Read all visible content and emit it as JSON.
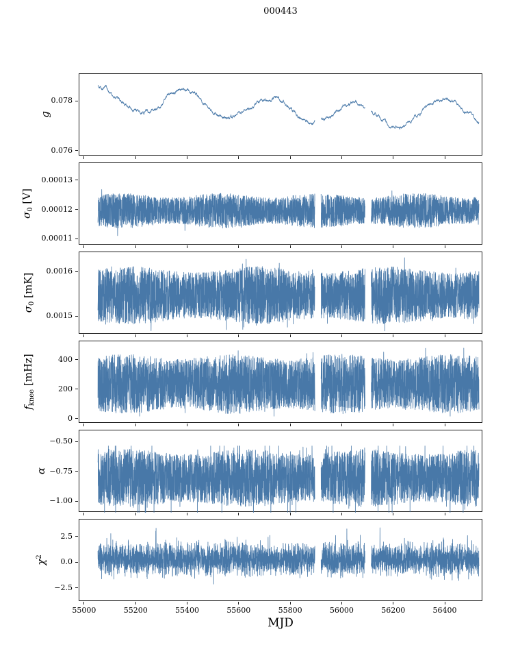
{
  "figure": {
    "title": "000443",
    "xlabel": "MJD",
    "line_color": "#4878a8",
    "background": "#ffffff"
  },
  "chart_data": {
    "type": "line",
    "title": "000443",
    "xlabel": "MJD",
    "legend": "none",
    "grid": false,
    "shared_x": true,
    "xlim": [
      54979,
      56546
    ],
    "xticks": [
      55000,
      55200,
      55400,
      55600,
      55800,
      56000,
      56200,
      56400
    ],
    "xtick_labels": [
      "55000",
      "55200",
      "55400",
      "55600",
      "55800",
      "56000",
      "56200",
      "56400"
    ],
    "x_data_range": [
      55051,
      56530
    ],
    "gaps": [
      [
        55893,
        55917
      ],
      [
        56088,
        56112
      ]
    ],
    "n_points": 4200,
    "line_color": "#4878a8",
    "subplots": [
      {
        "id": "g",
        "ylabel_text": "g",
        "ylabel_parts": [
          {
            "text": "g",
            "style": "italic"
          }
        ],
        "ylim": [
          0.0758,
          0.0791
        ],
        "yticks": [
          0.076,
          0.078
        ],
        "ytick_labels": [
          "0.076",
          "0.078"
        ],
        "summary": "slowly varying gain curve, oscillates between ~0.0765 and ~0.0790 with ~330-day quasi-period, high at start, deep minimum near MJD 56250",
        "series": {
          "kind": "smooth",
          "base": 0.0779,
          "walk_step": 5e-05,
          "walk_revert": 0.02,
          "clip": [
            0.0764,
            0.079
          ],
          "components": [
            {
              "amp": 0.00048,
              "period": 335,
              "phase": 1.6
            },
            {
              "amp": 0.00038,
              "period": 2900,
              "phase": 2.4
            }
          ]
        }
      },
      {
        "id": "sigma0_V",
        "ylabel_text": "σ0 [V]",
        "ylabel_parts": [
          {
            "text": "σ",
            "style": "italic"
          },
          {
            "text": "0",
            "style": "sub"
          },
          {
            "text": " [V]",
            "style": "normal"
          }
        ],
        "ylim": [
          0.000108,
          0.000136
        ],
        "yticks": [
          0.00013,
          0.00012,
          0.00011
        ],
        "ytick_labels": [
          "0.00013",
          "0.00012",
          "0.00011"
        ],
        "summary": "dense noise band centered near 0.00012 V spanning roughly 0.000114-0.000125 V with occasional low strands to ~0.000110 V",
        "series": {
          "kind": "uniform",
          "mean": 0.0001198,
          "spread": 5.2e-06,
          "mod_amp": 0.15,
          "mod_period": 380,
          "spike_rate": 0.004,
          "spike_scale": 2.0,
          "clip": [
            0.000109,
            0.000127
          ]
        }
      },
      {
        "id": "sigma0_mK",
        "ylabel_text": "σ0 [mK]",
        "ylabel_parts": [
          {
            "text": "σ",
            "style": "italic"
          },
          {
            "text": "0",
            "style": "sub"
          },
          {
            "text": " [mK]",
            "style": "normal"
          }
        ],
        "ylim": [
          0.00146,
          0.001645
        ],
        "yticks": [
          0.0016,
          0.0015
        ],
        "ytick_labels": [
          "0.0016",
          "0.0015"
        ],
        "summary": "dense noise band spanning roughly 0.00148-0.00162 mK centered near 0.00155",
        "series": {
          "kind": "uniform",
          "mean": 0.001548,
          "spread": 5.8e-05,
          "mod_amp": 0.12,
          "mod_period": 500,
          "spike_rate": 0.02,
          "spike_scale": 1.35,
          "clip": [
            0.001468,
            0.001635
          ]
        }
      },
      {
        "id": "fknee",
        "ylabel_text": "f_knee [mHz]",
        "ylabel_parts": [
          {
            "text": "f",
            "style": "italic"
          },
          {
            "text": "knee",
            "style": "sub"
          },
          {
            "text": " [mHz]",
            "style": "normal"
          }
        ],
        "ylim": [
          -30,
          530
        ],
        "yticks": [
          400,
          200,
          0
        ],
        "ytick_labels": [
          "400",
          "200",
          "0"
        ],
        "summary": "dense noise band spanning roughly 50-430 mHz centered near 240 with spikes up to ~500",
        "series": {
          "kind": "uniform",
          "mean": 240,
          "spread": 185,
          "mod_amp": 0.1,
          "mod_period": 420,
          "spike_rate": 0.012,
          "spike_scale": 1.35,
          "clip": [
            20,
            505
          ]
        }
      },
      {
        "id": "alpha",
        "ylabel_text": "α",
        "ylabel_parts": [
          {
            "text": "α",
            "style": "italic"
          }
        ],
        "ylim": [
          -1.09,
          -0.4
        ],
        "yticks": [
          -0.5,
          -0.75,
          -1.0
        ],
        "ytick_labels": [
          "−0.50",
          "−0.75",
          "−1.00"
        ],
        "summary": "dense noise band spanning roughly -1.05 to -0.55 centered near -0.80 with downward spikes past -1.1 (clipped at axis)",
        "series": {
          "kind": "uniform",
          "mean": -0.8,
          "spread": 0.22,
          "mod_amp": 0.1,
          "mod_period": 460,
          "spike_rate": 0.05,
          "spike_scale": 1.6,
          "clip": [
            -1.2,
            -0.53
          ]
        }
      },
      {
        "id": "chi2",
        "ylabel_text": "χ2",
        "ylabel_parts": [
          {
            "text": "χ",
            "style": "italic"
          },
          {
            "text": "2",
            "style": "sup"
          }
        ],
        "ylim": [
          -3.8,
          4.2
        ],
        "yticks": [
          2.5,
          0.0,
          -2.5
        ],
        "ytick_labels": [
          "2.5",
          "0.0",
          "−2.5"
        ],
        "summary": "quasi-gaussian noise band centered near +0.4 spanning roughly -1.8 to +2.6 with rare outliers to ±3",
        "series": {
          "kind": "gauss",
          "mean": 0.35,
          "scale": 1.5,
          "spike_rate": 0.006,
          "spike_span": 3.2,
          "clip": [
            -2.9,
            3.4
          ]
        }
      }
    ]
  }
}
